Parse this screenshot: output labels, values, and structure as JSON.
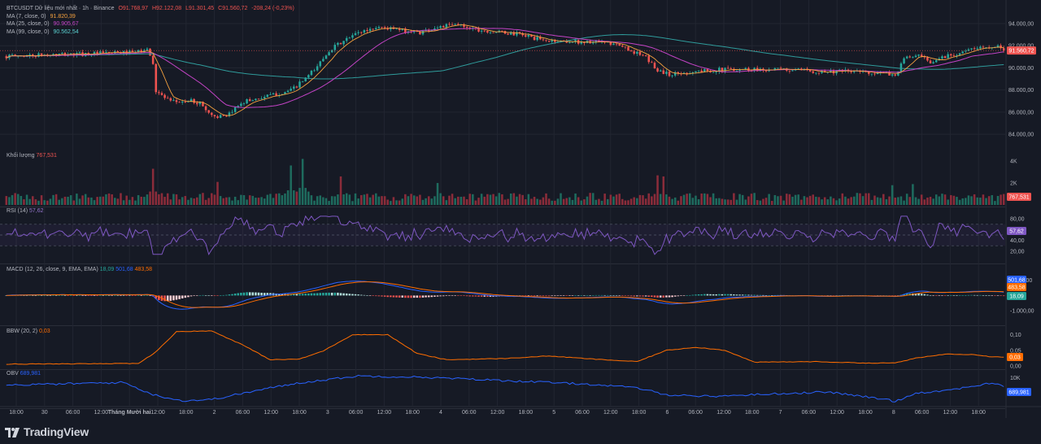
{
  "brand": {
    "logo_text": "TradingView"
  },
  "legend": {
    "symbol": "BTCUSDT Dữ liệu mới nhất · 1h · Binance",
    "open": "O91.768,97",
    "high": "H92.122,08",
    "low": "L91.301,45",
    "close": "C91.560,72",
    "change": "-208,24 (-0,23%)",
    "ma7_label": "MA (7, close, 0)",
    "ma7_value": "91.820,39",
    "ma25_label": "MA (25, close, 0)",
    "ma25_value": "90.905,67",
    "ma99_label": "MA (99, close, 0)",
    "ma99_value": "90.562,54"
  },
  "panes": {
    "volume": {
      "label": "Khối lượng",
      "value": "767,531",
      "axis_ticks": [
        "4K",
        "2K"
      ],
      "badge": "767,531"
    },
    "rsi": {
      "label": "RSI (14)",
      "value": "57,62",
      "axis_ticks": [
        "80,00",
        "60,00",
        "40,00",
        "20,00"
      ],
      "badge": "57,62"
    },
    "macd": {
      "label": "MACD (12, 26, close, 9, EMA, EMA)",
      "macd_value": "18,09",
      "signal_value": "501,68",
      "hist_value": "483,58",
      "axis_ticks": [
        "1.000,00",
        "-1.000,00"
      ],
      "badges": [
        "501,68",
        "483,58",
        "18,09"
      ]
    },
    "bbw": {
      "label": "BBW (20, 2)",
      "value": "0,03",
      "axis_ticks": [
        "0,10",
        "0,05",
        "0,00"
      ],
      "badge": "0,03"
    },
    "obv": {
      "label": "OBV",
      "value": "689,981",
      "axis_ticks": [
        "10K"
      ],
      "badge": "689,981"
    }
  },
  "chart_data": {
    "type": "candlestick",
    "symbol": "BTCUSDT",
    "interval": "1h",
    "price_axis_ticks": [
      94000,
      92000,
      90000,
      88000,
      86000,
      84000
    ],
    "price_tick_labels": [
      "94.000,00",
      "92.000,00",
      "90.000,00",
      "88.000,00",
      "86.000,00",
      "84.000,00"
    ],
    "price_range": [
      83200,
      95100
    ],
    "current_price": 91560.72,
    "current_price_label": "91.560,72",
    "time_axis_labels": [
      "18:00",
      "30",
      "06:00",
      "12:00",
      "Tháng Mười hai",
      "12:00",
      "18:00",
      "2",
      "06:00",
      "12:00",
      "18:00",
      "3",
      "06:00",
      "12:00",
      "18:00",
      "4",
      "06:00",
      "12:00",
      "18:00",
      "5",
      "06:00",
      "12:00",
      "18:00",
      "6",
      "06:00",
      "12:00",
      "18:00",
      "7",
      "06:00",
      "12:00",
      "18:00",
      "8",
      "06:00",
      "12:00",
      "18:00"
    ],
    "price_path_keypoints": [
      [
        0,
        91050
      ],
      [
        20,
        91200
      ],
      [
        44,
        91400
      ],
      [
        48,
        91650
      ],
      [
        50,
        90500
      ],
      [
        51,
        87900
      ],
      [
        56,
        86900
      ],
      [
        63,
        87000
      ],
      [
        66,
        86800
      ],
      [
        70,
        85700
      ],
      [
        75,
        85500
      ],
      [
        80,
        86900
      ],
      [
        90,
        87500
      ],
      [
        97,
        87950
      ],
      [
        101,
        88800
      ],
      [
        105,
        89800
      ],
      [
        110,
        91600
      ],
      [
        115,
        92400
      ],
      [
        120,
        93200
      ],
      [
        127,
        93700
      ],
      [
        134,
        93400
      ],
      [
        141,
        93200
      ],
      [
        147,
        93700
      ],
      [
        154,
        93900
      ],
      [
        161,
        93450
      ],
      [
        168,
        93200
      ],
      [
        176,
        93000
      ],
      [
        183,
        92450
      ],
      [
        191,
        92400
      ],
      [
        200,
        92300
      ],
      [
        206,
        92200
      ],
      [
        212,
        91700
      ],
      [
        218,
        90900
      ],
      [
        222,
        89800
      ],
      [
        226,
        89400
      ],
      [
        236,
        89700
      ],
      [
        248,
        89900
      ],
      [
        262,
        89850
      ],
      [
        276,
        89700
      ],
      [
        290,
        89650
      ],
      [
        300,
        89500
      ],
      [
        303,
        89300
      ],
      [
        306,
        90800
      ],
      [
        309,
        91050
      ],
      [
        312,
        91000
      ],
      [
        315,
        90300
      ],
      [
        318,
        90900
      ],
      [
        325,
        91400
      ],
      [
        332,
        91800
      ],
      [
        337,
        92050
      ],
      [
        340,
        91560
      ]
    ],
    "volume_bursts": [
      [
        50,
        3.3
      ],
      [
        72,
        2.1
      ],
      [
        97,
        3.6
      ],
      [
        101,
        4.2
      ],
      [
        114,
        2.6
      ],
      [
        147,
        2.0
      ],
      [
        222,
        2.7
      ],
      [
        224,
        2.6
      ],
      [
        302,
        1.8
      ],
      [
        309,
        1.9
      ]
    ],
    "rsi_range": [
      0,
      100
    ],
    "rsi_bands": [
      30,
      70
    ],
    "macd_range": [
      -1850,
      2000
    ],
    "bbw_range": [
      -0.005,
      0.13
    ],
    "bbw_keypoints": [
      [
        0,
        0.006
      ],
      [
        45,
        0.008
      ],
      [
        51,
        0.045
      ],
      [
        58,
        0.11
      ],
      [
        70,
        0.112
      ],
      [
        80,
        0.07
      ],
      [
        90,
        0.02
      ],
      [
        100,
        0.022
      ],
      [
        108,
        0.048
      ],
      [
        118,
        0.1
      ],
      [
        130,
        0.1
      ],
      [
        140,
        0.04
      ],
      [
        150,
        0.02
      ],
      [
        170,
        0.024
      ],
      [
        185,
        0.032
      ],
      [
        200,
        0.022
      ],
      [
        215,
        0.014
      ],
      [
        225,
        0.05
      ],
      [
        235,
        0.06
      ],
      [
        245,
        0.05
      ],
      [
        255,
        0.012
      ],
      [
        275,
        0.014
      ],
      [
        295,
        0.009
      ],
      [
        303,
        0.01
      ],
      [
        310,
        0.025
      ],
      [
        320,
        0.038
      ],
      [
        330,
        0.037
      ],
      [
        335,
        0.03
      ],
      [
        340,
        0.029
      ]
    ],
    "obv_keypoints": [
      [
        0,
        7800
      ],
      [
        40,
        8600
      ],
      [
        50,
        5000
      ],
      [
        60,
        3200
      ],
      [
        70,
        3600
      ],
      [
        90,
        7000
      ],
      [
        100,
        8500
      ],
      [
        120,
        10500
      ],
      [
        140,
        10200
      ],
      [
        160,
        9500
      ],
      [
        180,
        8800
      ],
      [
        200,
        8000
      ],
      [
        215,
        7000
      ],
      [
        225,
        5000
      ],
      [
        240,
        4500
      ],
      [
        260,
        5200
      ],
      [
        280,
        5800
      ],
      [
        300,
        3600
      ],
      [
        303,
        3000
      ],
      [
        310,
        5500
      ],
      [
        320,
        6200
      ],
      [
        335,
        8300
      ],
      [
        340,
        7600
      ]
    ],
    "obv_range": [
      1500,
      12500
    ],
    "colors": {
      "up": "#26a69a",
      "down": "#ef5350",
      "vol_up": "#1e6b5e",
      "vol_down": "#8b2c3a",
      "ma7": "#f7a23f",
      "ma25": "#c343c5",
      "ma99": "#2f9b9b",
      "rsi": "#7e57c2",
      "macd": "#2962ff",
      "signal": "#ff6d00",
      "bbw": "#ff6d00",
      "obv": "#2962ff",
      "grid": "#222631",
      "text": "#b2b5be",
      "background": "#161a25"
    }
  }
}
